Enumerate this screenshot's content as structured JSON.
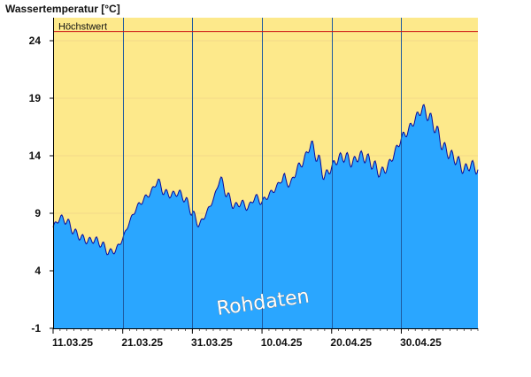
{
  "colors": {
    "plot_background": "#fde98b",
    "area_fill": "#2aa6ff",
    "area_line": "#0a0a9a",
    "max_line": "#cc1111",
    "grid": "#f4d98a",
    "date_gridline": "#1e5aa0"
  },
  "chart_data": {
    "type": "area",
    "title": "Wassertemperatur [°C]",
    "watermark": "Rohdaten",
    "reference_line": {
      "label": "Höchstwert",
      "value": 24.8
    },
    "ylim": [
      -1,
      26
    ],
    "yticks": [
      24,
      19,
      14,
      9,
      4,
      -1
    ],
    "xlim": [
      "2025-03-11",
      "2025-05-11"
    ],
    "xticks": [
      {
        "label": "11.03.25",
        "date": "2025-03-11"
      },
      {
        "label": "21.03.25",
        "date": "2025-03-21"
      },
      {
        "label": "31.03.25",
        "date": "2025-03-31"
      },
      {
        "label": "10.04.25",
        "date": "2025-04-10"
      },
      {
        "label": "20.04.25",
        "date": "2025-04-20"
      },
      {
        "label": "30.04.25",
        "date": "2025-04-30"
      }
    ],
    "grid": true,
    "series": [
      {
        "points": [
          [
            "2025-03-11",
            7.8
          ],
          [
            "2025-03-12",
            8.6
          ],
          [
            "2025-03-13",
            8.3
          ],
          [
            "2025-03-14",
            7.4
          ],
          [
            "2025-03-15",
            6.9
          ],
          [
            "2025-03-16",
            6.6
          ],
          [
            "2025-03-17",
            6.7
          ],
          [
            "2025-03-18",
            6.3
          ],
          [
            "2025-03-19",
            5.6
          ],
          [
            "2025-03-20",
            5.8
          ],
          [
            "2025-03-21",
            6.8
          ],
          [
            "2025-03-22",
            8.3
          ],
          [
            "2025-03-23",
            9.5
          ],
          [
            "2025-03-24",
            10.2
          ],
          [
            "2025-03-25",
            10.8
          ],
          [
            "2025-03-26",
            11.8
          ],
          [
            "2025-03-27",
            10.8
          ],
          [
            "2025-03-28",
            10.6
          ],
          [
            "2025-03-29",
            10.8
          ],
          [
            "2025-03-30",
            10.2
          ],
          [
            "2025-03-31",
            9.0
          ],
          [
            "2025-04-01",
            8.0
          ],
          [
            "2025-04-02",
            9.0
          ],
          [
            "2025-04-03",
            10.2
          ],
          [
            "2025-04-04",
            12.0
          ],
          [
            "2025-04-05",
            10.6
          ],
          [
            "2025-04-06",
            9.6
          ],
          [
            "2025-04-07",
            9.9
          ],
          [
            "2025-04-08",
            9.5
          ],
          [
            "2025-04-09",
            10.4
          ],
          [
            "2025-04-10",
            10.0
          ],
          [
            "2025-04-11",
            10.6
          ],
          [
            "2025-04-12",
            11.2
          ],
          [
            "2025-04-13",
            12.1
          ],
          [
            "2025-04-14",
            11.5
          ],
          [
            "2025-04-15",
            12.8
          ],
          [
            "2025-04-16",
            13.6
          ],
          [
            "2025-04-17",
            15.0
          ],
          [
            "2025-04-18",
            13.8
          ],
          [
            "2025-04-19",
            12.2
          ],
          [
            "2025-04-20",
            13.0
          ],
          [
            "2025-04-21",
            13.8
          ],
          [
            "2025-04-22",
            13.9
          ],
          [
            "2025-04-23",
            13.4
          ],
          [
            "2025-04-24",
            14.0
          ],
          [
            "2025-04-25",
            13.8
          ],
          [
            "2025-04-26",
            13.2
          ],
          [
            "2025-04-27",
            12.5
          ],
          [
            "2025-04-28",
            13.0
          ],
          [
            "2025-04-29",
            14.2
          ],
          [
            "2025-04-30",
            15.5
          ],
          [
            "2025-05-01",
            16.2
          ],
          [
            "2025-05-02",
            17.2
          ],
          [
            "2025-05-03",
            18.1
          ],
          [
            "2025-05-04",
            17.4
          ],
          [
            "2025-05-05",
            16.3
          ],
          [
            "2025-05-06",
            14.8
          ],
          [
            "2025-05-07",
            14.1
          ],
          [
            "2025-05-08",
            13.6
          ],
          [
            "2025-05-09",
            12.8
          ],
          [
            "2025-05-10",
            13.2
          ],
          [
            "2025-05-11",
            12.8
          ]
        ]
      }
    ]
  }
}
